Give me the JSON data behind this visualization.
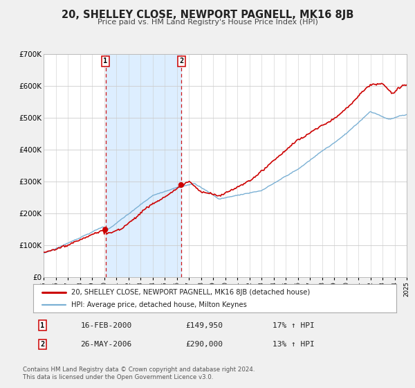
{
  "title": "20, SHELLEY CLOSE, NEWPORT PAGNELL, MK16 8JB",
  "subtitle": "Price paid vs. HM Land Registry's House Price Index (HPI)",
  "ylim": [
    0,
    700000
  ],
  "yticks": [
    0,
    100000,
    200000,
    300000,
    400000,
    500000,
    600000,
    700000
  ],
  "ytick_labels": [
    "£0",
    "£100K",
    "£200K",
    "£300K",
    "£400K",
    "£500K",
    "£600K",
    "£700K"
  ],
  "price_color": "#cc0000",
  "hpi_color": "#7ab0d4",
  "background_color": "#f0f0f0",
  "plot_bg_color": "#ffffff",
  "shade_color": "#ddeeff",
  "grid_color": "#cccccc",
  "transaction1": {
    "date": "16-FEB-2000",
    "price_str": "£149,950",
    "label": "1",
    "pct": "17%",
    "dir": "↑",
    "year": 2000.12
  },
  "transaction2": {
    "date": "26-MAY-2006",
    "price_str": "£290,000",
    "label": "2",
    "pct": "13%",
    "dir": "↑",
    "year": 2006.39
  },
  "legend_line1": "20, SHELLEY CLOSE, NEWPORT PAGNELL, MK16 8JB (detached house)",
  "legend_line2": "HPI: Average price, detached house, Milton Keynes",
  "footer1": "Contains HM Land Registry data © Crown copyright and database right 2024.",
  "footer2": "This data is licensed under the Open Government Licence v3.0."
}
